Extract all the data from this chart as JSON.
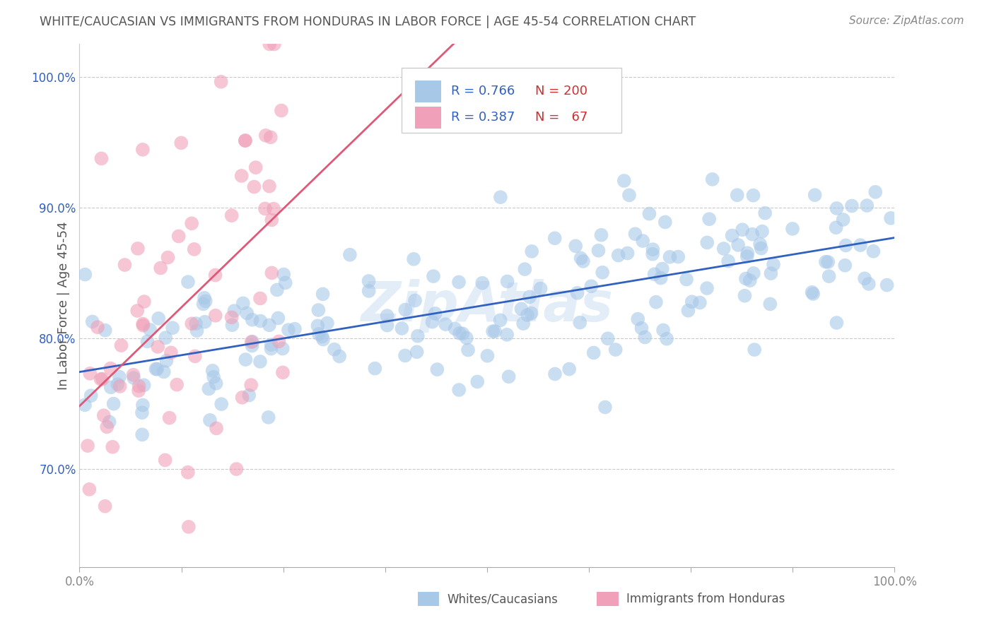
{
  "title": "WHITE/CAUCASIAN VS IMMIGRANTS FROM HONDURAS IN LABOR FORCE | AGE 45-54 CORRELATION CHART",
  "source": "Source: ZipAtlas.com",
  "ylabel": "In Labor Force | Age 45-54",
  "x_min": 0.0,
  "x_max": 1.0,
  "y_min": 0.625,
  "y_max": 1.025,
  "watermark": "ZipAtlas",
  "blue_color": "#A8C8E8",
  "pink_color": "#F0A0B8",
  "blue_line_color": "#3060C0",
  "pink_line_color": "#E05878",
  "legend_blue_R": "0.766",
  "legend_blue_N": "200",
  "legend_pink_R": "0.387",
  "legend_pink_N": "67",
  "blue_R": 0.766,
  "blue_N": 200,
  "pink_R": 0.387,
  "pink_N": 67,
  "title_color": "#555555",
  "source_color": "#888888",
  "axis_label_color": "#555555",
  "tick_color_x": "#888888",
  "tick_color_y": "#3060C0",
  "grid_color": "#BBBBBB",
  "legend_R_color": "#3060C0",
  "legend_N_color": "#CC3030"
}
